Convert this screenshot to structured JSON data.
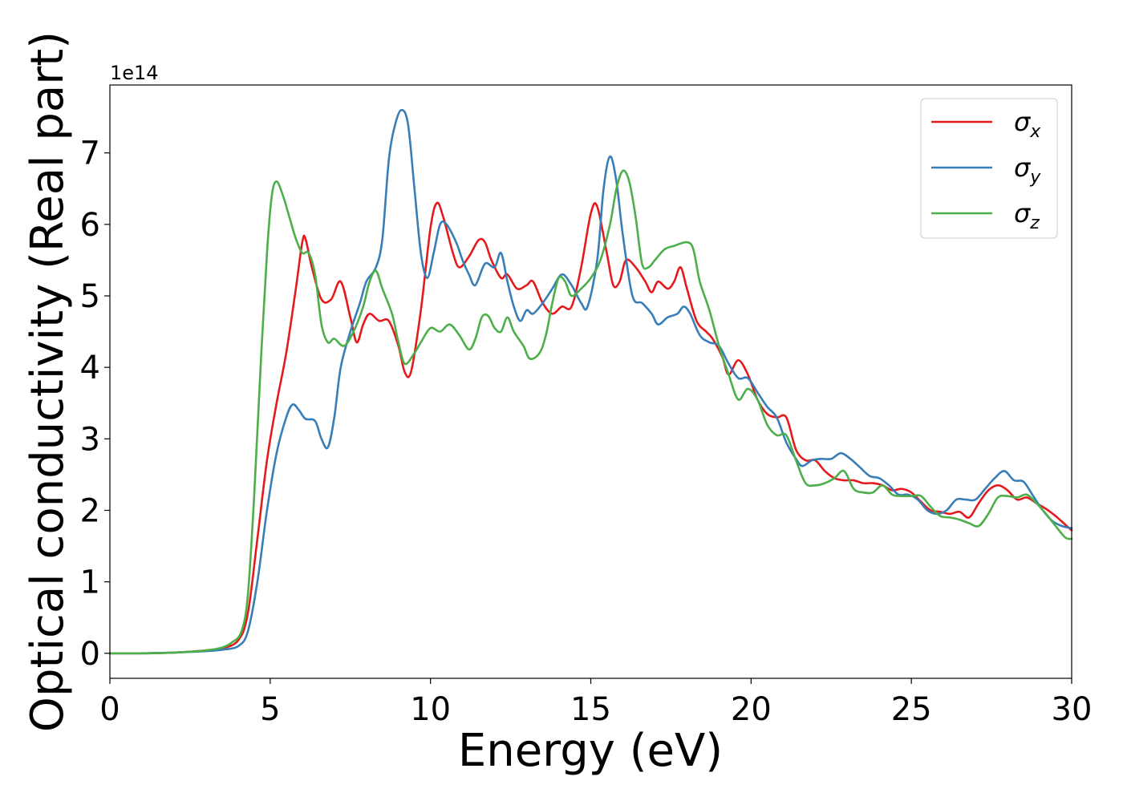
{
  "chart_data": {
    "type": "line",
    "xlabel": "Energy (eV)",
    "ylabel": "Optical conductivity (Real part)",
    "y_offset_label": "1e14",
    "xlim": [
      0,
      30
    ],
    "ylim": [
      -0.35,
      7.95
    ],
    "x_ticks": [
      0,
      5,
      10,
      15,
      20,
      25,
      30
    ],
    "x_tick_labels": [
      "0",
      "5",
      "10",
      "15",
      "20",
      "25",
      "30"
    ],
    "y_ticks": [
      0,
      1,
      2,
      3,
      4,
      5,
      6,
      7
    ],
    "y_tick_labels": [
      "0",
      "1",
      "2",
      "3",
      "4",
      "5",
      "6",
      "7"
    ],
    "grid": false,
    "legend_position": "top-right",
    "series": [
      {
        "name": "σx",
        "symbol": "σ",
        "subscript": "x",
        "color": "#e41a1c",
        "points": [
          [
            0,
            0
          ],
          [
            1,
            0
          ],
          [
            2,
            0.01
          ],
          [
            3,
            0.04
          ],
          [
            3.5,
            0.07
          ],
          [
            4,
            0.18
          ],
          [
            4.3,
            0.55
          ],
          [
            4.6,
            1.6
          ],
          [
            4.9,
            2.7
          ],
          [
            5.2,
            3.5
          ],
          [
            5.5,
            4.2
          ],
          [
            5.8,
            5.1
          ],
          [
            6.0,
            5.75
          ],
          [
            6.1,
            5.8
          ],
          [
            6.3,
            5.4
          ],
          [
            6.6,
            4.95
          ],
          [
            6.9,
            4.95
          ],
          [
            7.2,
            5.2
          ],
          [
            7.5,
            4.7
          ],
          [
            7.7,
            4.35
          ],
          [
            7.9,
            4.6
          ],
          [
            8.1,
            4.75
          ],
          [
            8.4,
            4.65
          ],
          [
            8.7,
            4.65
          ],
          [
            9.0,
            4.3
          ],
          [
            9.2,
            3.93
          ],
          [
            9.4,
            3.95
          ],
          [
            9.7,
            4.8
          ],
          [
            10.0,
            5.95
          ],
          [
            10.2,
            6.3
          ],
          [
            10.4,
            6.1
          ],
          [
            10.7,
            5.6
          ],
          [
            10.9,
            5.4
          ],
          [
            11.2,
            5.55
          ],
          [
            11.5,
            5.78
          ],
          [
            11.7,
            5.75
          ],
          [
            11.9,
            5.5
          ],
          [
            12.2,
            5.25
          ],
          [
            12.4,
            5.3
          ],
          [
            12.7,
            5.1
          ],
          [
            13.0,
            5.15
          ],
          [
            13.2,
            5.2
          ],
          [
            13.5,
            4.9
          ],
          [
            13.8,
            4.75
          ],
          [
            14.1,
            4.85
          ],
          [
            14.4,
            4.85
          ],
          [
            14.7,
            5.4
          ],
          [
            15.0,
            6.15
          ],
          [
            15.2,
            6.25
          ],
          [
            15.5,
            5.6
          ],
          [
            15.7,
            5.15
          ],
          [
            15.9,
            5.2
          ],
          [
            16.1,
            5.5
          ],
          [
            16.4,
            5.4
          ],
          [
            16.7,
            5.2
          ],
          [
            16.9,
            5.05
          ],
          [
            17.1,
            5.2
          ],
          [
            17.4,
            5.1
          ],
          [
            17.6,
            5.2
          ],
          [
            17.8,
            5.4
          ],
          [
            18.0,
            5.1
          ],
          [
            18.3,
            4.65
          ],
          [
            18.6,
            4.5
          ],
          [
            18.8,
            4.4
          ],
          [
            19.1,
            4.15
          ],
          [
            19.3,
            3.9
          ],
          [
            19.6,
            4.1
          ],
          [
            19.9,
            3.9
          ],
          [
            20.2,
            3.55
          ],
          [
            20.5,
            3.35
          ],
          [
            20.8,
            3.3
          ],
          [
            21.1,
            3.3
          ],
          [
            21.4,
            2.85
          ],
          [
            21.7,
            2.7
          ],
          [
            22.0,
            2.7
          ],
          [
            22.3,
            2.55
          ],
          [
            22.6,
            2.45
          ],
          [
            22.9,
            2.42
          ],
          [
            23.2,
            2.42
          ],
          [
            23.5,
            2.38
          ],
          [
            23.8,
            2.38
          ],
          [
            24.1,
            2.35
          ],
          [
            24.4,
            2.28
          ],
          [
            24.7,
            2.3
          ],
          [
            25.0,
            2.25
          ],
          [
            25.3,
            2.12
          ],
          [
            25.6,
            2.0
          ],
          [
            25.9,
            1.98
          ],
          [
            26.2,
            1.95
          ],
          [
            26.5,
            1.98
          ],
          [
            26.8,
            1.9
          ],
          [
            27.1,
            2.1
          ],
          [
            27.4,
            2.28
          ],
          [
            27.7,
            2.35
          ],
          [
            28.0,
            2.28
          ],
          [
            28.3,
            2.15
          ],
          [
            28.6,
            2.18
          ],
          [
            28.9,
            2.1
          ],
          [
            29.2,
            2.02
          ],
          [
            29.5,
            1.92
          ],
          [
            29.8,
            1.8
          ],
          [
            30.0,
            1.72
          ]
        ]
      },
      {
        "name": "σy",
        "symbol": "σ",
        "subscript": "y",
        "color": "#377eb8",
        "points": [
          [
            0,
            0
          ],
          [
            1,
            0
          ],
          [
            2,
            0.01
          ],
          [
            3,
            0.03
          ],
          [
            3.5,
            0.05
          ],
          [
            4,
            0.1
          ],
          [
            4.3,
            0.3
          ],
          [
            4.6,
            1.0
          ],
          [
            4.9,
            2.0
          ],
          [
            5.2,
            2.8
          ],
          [
            5.5,
            3.3
          ],
          [
            5.7,
            3.48
          ],
          [
            5.9,
            3.4
          ],
          [
            6.1,
            3.28
          ],
          [
            6.4,
            3.25
          ],
          [
            6.6,
            3.0
          ],
          [
            6.8,
            2.88
          ],
          [
            7.0,
            3.3
          ],
          [
            7.2,
            4.0
          ],
          [
            7.5,
            4.5
          ],
          [
            7.8,
            4.9
          ],
          [
            8.0,
            5.2
          ],
          [
            8.3,
            5.4
          ],
          [
            8.5,
            5.8
          ],
          [
            8.7,
            6.9
          ],
          [
            8.9,
            7.4
          ],
          [
            9.1,
            7.6
          ],
          [
            9.3,
            7.4
          ],
          [
            9.5,
            6.5
          ],
          [
            9.7,
            5.6
          ],
          [
            9.9,
            5.25
          ],
          [
            10.1,
            5.6
          ],
          [
            10.3,
            6.0
          ],
          [
            10.5,
            6.0
          ],
          [
            10.8,
            5.75
          ],
          [
            11.0,
            5.5
          ],
          [
            11.2,
            5.3
          ],
          [
            11.4,
            5.15
          ],
          [
            11.7,
            5.45
          ],
          [
            12.0,
            5.4
          ],
          [
            12.2,
            5.6
          ],
          [
            12.4,
            5.2
          ],
          [
            12.6,
            4.85
          ],
          [
            12.8,
            4.65
          ],
          [
            13.0,
            4.8
          ],
          [
            13.2,
            4.75
          ],
          [
            13.5,
            4.9
          ],
          [
            13.8,
            5.1
          ],
          [
            14.1,
            5.3
          ],
          [
            14.4,
            5.15
          ],
          [
            14.7,
            4.9
          ],
          [
            14.9,
            4.85
          ],
          [
            15.2,
            5.5
          ],
          [
            15.4,
            6.5
          ],
          [
            15.6,
            6.95
          ],
          [
            15.8,
            6.6
          ],
          [
            16.0,
            5.85
          ],
          [
            16.3,
            5.0
          ],
          [
            16.6,
            4.9
          ],
          [
            16.9,
            4.75
          ],
          [
            17.1,
            4.6
          ],
          [
            17.4,
            4.7
          ],
          [
            17.7,
            4.75
          ],
          [
            17.9,
            4.85
          ],
          [
            18.1,
            4.75
          ],
          [
            18.4,
            4.45
          ],
          [
            18.7,
            4.35
          ],
          [
            19.0,
            4.3
          ],
          [
            19.3,
            4.05
          ],
          [
            19.6,
            3.85
          ],
          [
            19.9,
            3.85
          ],
          [
            20.2,
            3.65
          ],
          [
            20.5,
            3.45
          ],
          [
            20.8,
            3.3
          ],
          [
            21.1,
            2.95
          ],
          [
            21.4,
            2.72
          ],
          [
            21.6,
            2.62
          ],
          [
            21.9,
            2.7
          ],
          [
            22.2,
            2.72
          ],
          [
            22.5,
            2.72
          ],
          [
            22.8,
            2.8
          ],
          [
            23.1,
            2.72
          ],
          [
            23.4,
            2.6
          ],
          [
            23.7,
            2.48
          ],
          [
            24.0,
            2.45
          ],
          [
            24.3,
            2.35
          ],
          [
            24.6,
            2.22
          ],
          [
            24.9,
            2.22
          ],
          [
            25.2,
            2.15
          ],
          [
            25.5,
            2.0
          ],
          [
            25.8,
            1.95
          ],
          [
            26.1,
            2.0
          ],
          [
            26.4,
            2.15
          ],
          [
            26.7,
            2.15
          ],
          [
            27.0,
            2.15
          ],
          [
            27.3,
            2.3
          ],
          [
            27.6,
            2.45
          ],
          [
            27.9,
            2.55
          ],
          [
            28.2,
            2.42
          ],
          [
            28.5,
            2.4
          ],
          [
            28.8,
            2.2
          ],
          [
            29.1,
            2.0
          ],
          [
            29.4,
            1.85
          ],
          [
            29.7,
            1.78
          ],
          [
            30.0,
            1.75
          ]
        ]
      },
      {
        "name": "σz",
        "symbol": "σ",
        "subscript": "z",
        "color": "#4daf4a",
        "points": [
          [
            0,
            0
          ],
          [
            1,
            0
          ],
          [
            2,
            0.01
          ],
          [
            3,
            0.04
          ],
          [
            3.5,
            0.08
          ],
          [
            3.8,
            0.15
          ],
          [
            4.1,
            0.3
          ],
          [
            4.3,
            0.8
          ],
          [
            4.5,
            2.2
          ],
          [
            4.7,
            4.0
          ],
          [
            4.9,
            5.6
          ],
          [
            5.05,
            6.4
          ],
          [
            5.2,
            6.6
          ],
          [
            5.4,
            6.4
          ],
          [
            5.6,
            6.1
          ],
          [
            5.8,
            5.8
          ],
          [
            6.0,
            5.6
          ],
          [
            6.2,
            5.6
          ],
          [
            6.4,
            5.3
          ],
          [
            6.6,
            4.6
          ],
          [
            6.8,
            4.35
          ],
          [
            7.0,
            4.4
          ],
          [
            7.3,
            4.3
          ],
          [
            7.6,
            4.5
          ],
          [
            7.9,
            4.85
          ],
          [
            8.1,
            5.2
          ],
          [
            8.3,
            5.35
          ],
          [
            8.5,
            5.1
          ],
          [
            8.8,
            4.75
          ],
          [
            9.0,
            4.35
          ],
          [
            9.2,
            4.05
          ],
          [
            9.5,
            4.2
          ],
          [
            9.7,
            4.35
          ],
          [
            10.0,
            4.55
          ],
          [
            10.3,
            4.5
          ],
          [
            10.6,
            4.6
          ],
          [
            10.9,
            4.45
          ],
          [
            11.2,
            4.25
          ],
          [
            11.4,
            4.4
          ],
          [
            11.6,
            4.7
          ],
          [
            11.8,
            4.72
          ],
          [
            12.0,
            4.55
          ],
          [
            12.2,
            4.5
          ],
          [
            12.4,
            4.7
          ],
          [
            12.6,
            4.5
          ],
          [
            12.9,
            4.3
          ],
          [
            13.1,
            4.12
          ],
          [
            13.4,
            4.2
          ],
          [
            13.6,
            4.45
          ],
          [
            13.8,
            4.9
          ],
          [
            14.0,
            5.25
          ],
          [
            14.2,
            5.2
          ],
          [
            14.4,
            5.0
          ],
          [
            14.7,
            5.1
          ],
          [
            15.0,
            5.25
          ],
          [
            15.3,
            5.5
          ],
          [
            15.6,
            6.0
          ],
          [
            15.8,
            6.5
          ],
          [
            16.0,
            6.75
          ],
          [
            16.2,
            6.6
          ],
          [
            16.4,
            6.1
          ],
          [
            16.6,
            5.45
          ],
          [
            16.8,
            5.4
          ],
          [
            17.0,
            5.5
          ],
          [
            17.3,
            5.65
          ],
          [
            17.6,
            5.7
          ],
          [
            18.0,
            5.75
          ],
          [
            18.2,
            5.65
          ],
          [
            18.4,
            5.2
          ],
          [
            18.7,
            4.8
          ],
          [
            19.0,
            4.3
          ],
          [
            19.3,
            3.9
          ],
          [
            19.6,
            3.55
          ],
          [
            19.9,
            3.7
          ],
          [
            20.2,
            3.55
          ],
          [
            20.5,
            3.2
          ],
          [
            20.8,
            3.05
          ],
          [
            21.1,
            3.05
          ],
          [
            21.4,
            2.7
          ],
          [
            21.7,
            2.38
          ],
          [
            22.0,
            2.35
          ],
          [
            22.3,
            2.38
          ],
          [
            22.6,
            2.45
          ],
          [
            22.9,
            2.55
          ],
          [
            23.2,
            2.3
          ],
          [
            23.5,
            2.25
          ],
          [
            23.8,
            2.25
          ],
          [
            24.1,
            2.35
          ],
          [
            24.4,
            2.22
          ],
          [
            24.7,
            2.2
          ],
          [
            25.0,
            2.2
          ],
          [
            25.3,
            2.2
          ],
          [
            25.6,
            2.05
          ],
          [
            25.9,
            1.92
          ],
          [
            26.2,
            1.9
          ],
          [
            26.5,
            1.87
          ],
          [
            26.8,
            1.82
          ],
          [
            27.1,
            1.78
          ],
          [
            27.4,
            1.95
          ],
          [
            27.7,
            2.18
          ],
          [
            28.0,
            2.2
          ],
          [
            28.3,
            2.18
          ],
          [
            28.6,
            2.22
          ],
          [
            28.9,
            2.1
          ],
          [
            29.2,
            1.95
          ],
          [
            29.5,
            1.78
          ],
          [
            29.8,
            1.62
          ],
          [
            30.0,
            1.6
          ]
        ]
      }
    ]
  }
}
